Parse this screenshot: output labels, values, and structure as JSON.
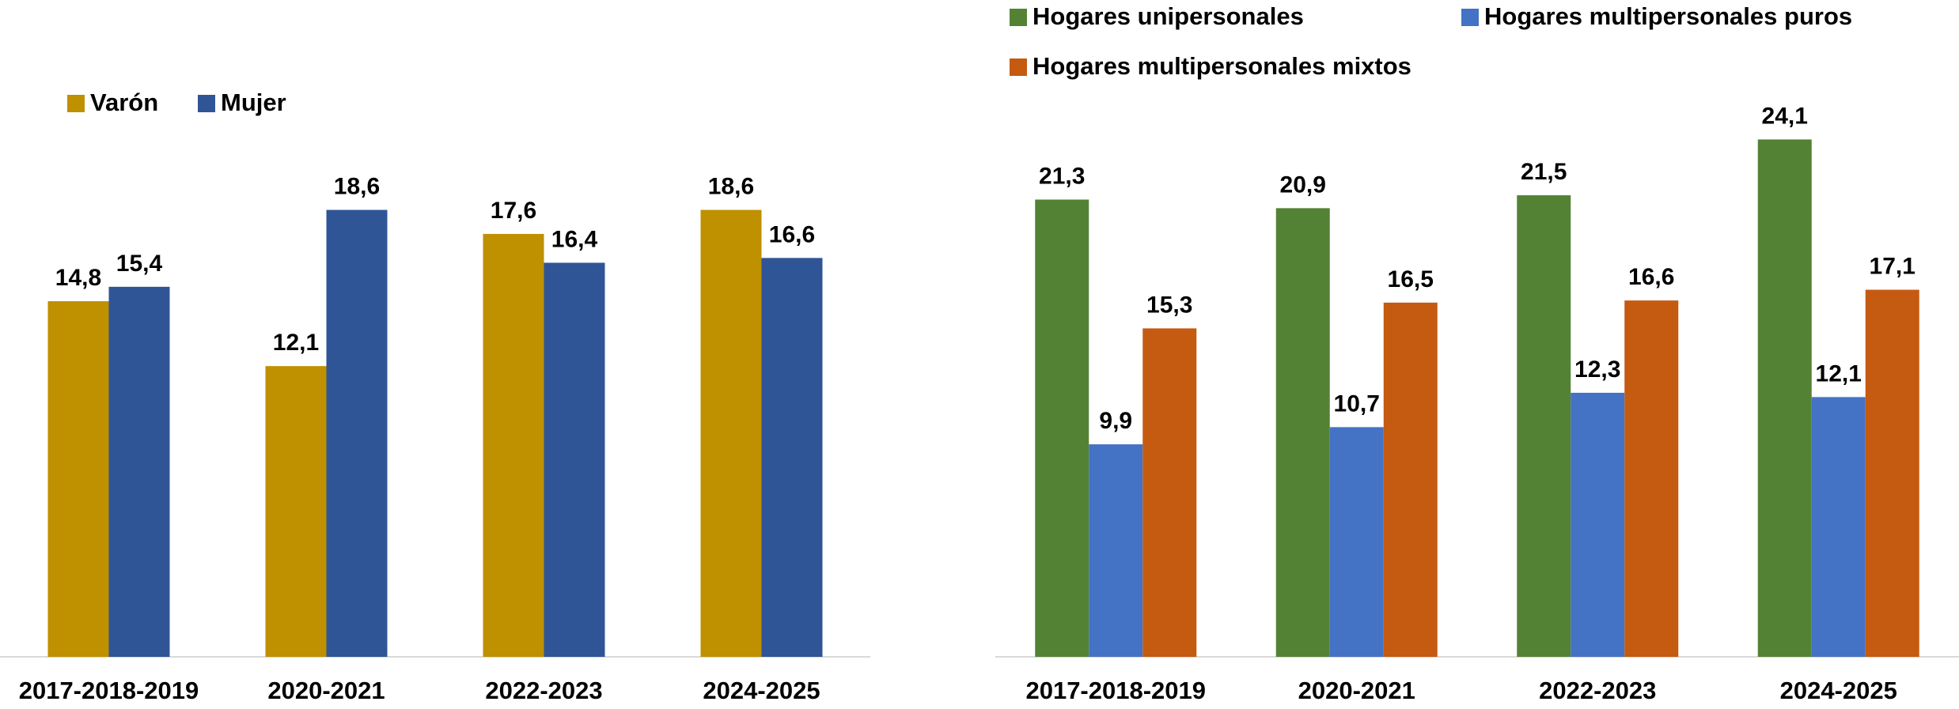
{
  "chart_data": [
    {
      "type": "bar",
      "categories": [
        "2017-2018-2019",
        "2020-2021",
        "2022-2023",
        "2024-2025"
      ],
      "series": [
        {
          "name": "Varón",
          "color": "#bf9000",
          "values": [
            14.8,
            12.1,
            17.6,
            18.6
          ],
          "value_labels": [
            "14,8",
            "12,1",
            "17,6",
            "18,6"
          ]
        },
        {
          "name": "Mujer",
          "color": "#2f5597",
          "values": [
            15.4,
            18.6,
            16.4,
            16.6
          ],
          "value_labels": [
            "15,4",
            "18,6",
            "16,4",
            "16,6"
          ]
        }
      ],
      "ylim": [
        0,
        20
      ]
    },
    {
      "type": "bar",
      "categories": [
        "2017-2018-2019",
        "2020-2021",
        "2022-2023",
        "2024-2025"
      ],
      "series": [
        {
          "name": "Hogares unipersonales",
          "color": "#548235",
          "values": [
            21.3,
            20.9,
            21.5,
            24.1
          ],
          "value_labels": [
            "21,3",
            "20,9",
            "21,5",
            "24,1"
          ]
        },
        {
          "name": "Hogares multipersonales puros",
          "color": "#4472c4",
          "values": [
            9.9,
            10.7,
            12.3,
            12.1
          ],
          "value_labels": [
            "9,9",
            "10,7",
            "12,3",
            "12,1"
          ]
        },
        {
          "name": "Hogares multipersonales mixtos",
          "color": "#c55a11",
          "values": [
            15.3,
            16.5,
            16.6,
            17.1
          ],
          "value_labels": [
            "15,3",
            "16,5",
            "16,6",
            "17,1"
          ]
        }
      ],
      "ylim": [
        0,
        25
      ]
    }
  ]
}
